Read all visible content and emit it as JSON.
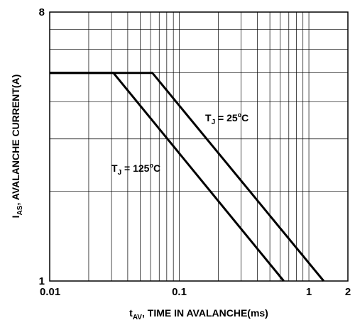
{
  "chart_data": {
    "type": "line",
    "x_scale": "log",
    "y_scale": "log",
    "xlim": [
      0.01,
      2
    ],
    "ylim": [
      1,
      8
    ],
    "grid": true,
    "x_ticks": [
      {
        "value": 0.01,
        "label": "0.01"
      },
      {
        "value": 0.1,
        "label": "0.1"
      },
      {
        "value": 1,
        "label": "1"
      },
      {
        "value": 2,
        "label": "2"
      }
    ],
    "y_ticks": [
      {
        "value": 1,
        "label": "1"
      },
      {
        "value": 8,
        "label": "8"
      }
    ],
    "xlabel": {
      "main": "t",
      "sub": "AV",
      "rest": ", TIME IN AVALANCHE(ms)"
    },
    "ylabel": {
      "main": "I",
      "sub": "AS",
      "rest": ", AVALANCHE CURRENT(A)"
    },
    "series": [
      {
        "label": {
          "main": "T",
          "sub": "J",
          "rest": " = 25",
          "sup": "o",
          "unit": "C"
        },
        "points": [
          [
            0.01,
            5.0
          ],
          [
            0.062,
            5.0
          ],
          [
            1.3,
            1.0
          ]
        ]
      },
      {
        "label": {
          "main": "T",
          "sub": "J",
          "rest": " = 125",
          "sup": "o",
          "unit": "C"
        },
        "points": [
          [
            0.01,
            5.0
          ],
          [
            0.031,
            5.0
          ],
          [
            0.64,
            1.0
          ]
        ]
      }
    ]
  }
}
